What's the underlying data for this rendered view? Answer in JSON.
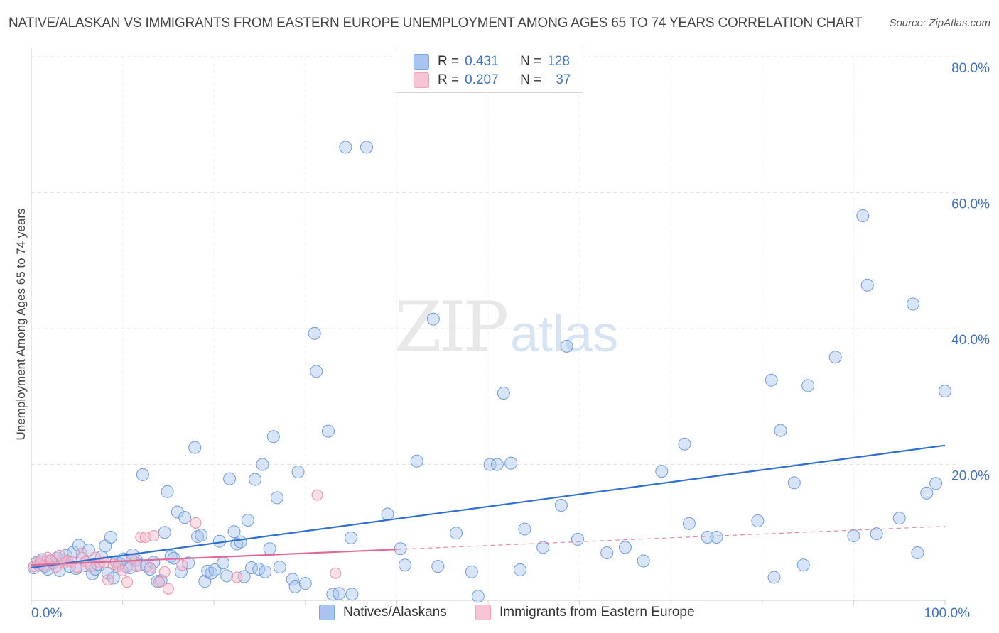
{
  "title": "NATIVE/ALASKAN VS IMMIGRANTS FROM EASTERN EUROPE UNEMPLOYMENT AMONG AGES 65 TO 74 YEARS CORRELATION CHART",
  "source": "Source: ZipAtlas.com",
  "watermark": {
    "zip": "ZIP",
    "atlas": "atlas"
  },
  "legend": {
    "r_label": "R =",
    "n_label": "N =",
    "rows": [
      {
        "r": "0.431",
        "n": "128",
        "color": "#a9c5ef"
      },
      {
        "r": "0.207",
        "n": "37",
        "color": "#f6b7ca"
      }
    ]
  },
  "bottom_legend": [
    {
      "label": "Natives/Alaskans",
      "color": "#a9c5ef"
    },
    {
      "label": "Immigrants from Eastern Europe",
      "color": "#f6b7ca"
    }
  ],
  "colors": {
    "blue": "#3d73c6",
    "blue_line": "#2f6fd0",
    "pink_line": "#e06a95",
    "grid": "#e3e3e3"
  },
  "chart_data": {
    "type": "scatter",
    "title": "NATIVE/ALASKAN VS IMMIGRANTS FROM EASTERN EUROPE UNEMPLOYMENT AMONG AGES 65 TO 74 YEARS CORRELATION CHART",
    "xlabel": "",
    "ylabel": "Unemployment Among Ages 65 to 74 years",
    "xlim": [
      0,
      100
    ],
    "ylim": [
      0,
      80
    ],
    "x_tick_labels": [
      {
        "value": 0,
        "label": "0.0%"
      },
      {
        "value": 100,
        "label": "100.0%"
      }
    ],
    "y_tick_labels": [
      {
        "value": 20,
        "label": "20.0%"
      },
      {
        "value": 40,
        "label": "40.0%"
      },
      {
        "value": 60,
        "label": "60.0%"
      },
      {
        "value": 80,
        "label": "80.0%"
      }
    ],
    "series": [
      {
        "name": "Natives/Alaskans",
        "R": 0.431,
        "N": 128,
        "trend": {
          "x": [
            0,
            100
          ],
          "y": [
            4.8,
            22.8
          ]
        },
        "points": [
          [
            0.3,
            4.8
          ],
          [
            0.6,
            5.6
          ],
          [
            0.9,
            5.2
          ],
          [
            1.2,
            6.0
          ],
          [
            1.5,
            5.0
          ],
          [
            1.8,
            4.6
          ],
          [
            2.1,
            5.8
          ],
          [
            2.4,
            5.5
          ],
          [
            2.8,
            6.2
          ],
          [
            3.1,
            4.4
          ],
          [
            3.5,
            5.9
          ],
          [
            3.8,
            6.6
          ],
          [
            4.2,
            5.0
          ],
          [
            4.6,
            7.1
          ],
          [
            4.9,
            4.7
          ],
          [
            5.2,
            8.1
          ],
          [
            5.6,
            6.2
          ],
          [
            6.0,
            5.1
          ],
          [
            6.3,
            7.4
          ],
          [
            6.7,
            3.9
          ],
          [
            7.0,
            4.6
          ],
          [
            7.3,
            5.3
          ],
          [
            7.7,
            6.4
          ],
          [
            8.1,
            8.0
          ],
          [
            8.4,
            4.0
          ],
          [
            8.7,
            9.3
          ],
          [
            9.0,
            3.3
          ],
          [
            9.3,
            5.7
          ],
          [
            9.7,
            5.4
          ],
          [
            10.1,
            6.1
          ],
          [
            10.4,
            5.0
          ],
          [
            10.8,
            4.8
          ],
          [
            11.1,
            6.7
          ],
          [
            11.5,
            5.9
          ],
          [
            11.9,
            5.2
          ],
          [
            12.2,
            18.5
          ],
          [
            12.6,
            5.1
          ],
          [
            13.0,
            4.6
          ],
          [
            13.4,
            5.6
          ],
          [
            13.8,
            2.8
          ],
          [
            14.2,
            2.9
          ],
          [
            14.6,
            10.0
          ],
          [
            14.9,
            16.0
          ],
          [
            15.3,
            6.5
          ],
          [
            15.6,
            6.2
          ],
          [
            16.0,
            13.0
          ],
          [
            16.4,
            4.2
          ],
          [
            16.8,
            12.2
          ],
          [
            17.2,
            5.5
          ],
          [
            17.9,
            22.5
          ],
          [
            18.2,
            9.4
          ],
          [
            18.6,
            9.6
          ],
          [
            19.0,
            2.8
          ],
          [
            19.3,
            4.3
          ],
          [
            19.7,
            4.0
          ],
          [
            20.1,
            4.5
          ],
          [
            20.6,
            8.7
          ],
          [
            21.0,
            5.5
          ],
          [
            21.4,
            3.6
          ],
          [
            21.7,
            17.9
          ],
          [
            22.2,
            10.1
          ],
          [
            22.5,
            8.3
          ],
          [
            22.9,
            8.6
          ],
          [
            23.3,
            3.5
          ],
          [
            23.7,
            11.8
          ],
          [
            24.1,
            4.8
          ],
          [
            24.5,
            17.8
          ],
          [
            24.9,
            4.6
          ],
          [
            25.3,
            20.0
          ],
          [
            25.6,
            4.2
          ],
          [
            26.1,
            7.6
          ],
          [
            26.5,
            24.1
          ],
          [
            26.9,
            15.1
          ],
          [
            27.2,
            4.9
          ],
          [
            28.6,
            3.1
          ],
          [
            28.9,
            2.0
          ],
          [
            29.2,
            18.9
          ],
          [
            30.0,
            2.5
          ],
          [
            31.0,
            39.3
          ],
          [
            31.2,
            33.7
          ],
          [
            32.5,
            24.9
          ],
          [
            33.0,
            0.9
          ],
          [
            33.7,
            1.0
          ],
          [
            34.4,
            66.7
          ],
          [
            35.0,
            9.2
          ],
          [
            35.1,
            0.9
          ],
          [
            36.7,
            66.7
          ],
          [
            39.0,
            12.7
          ],
          [
            40.4,
            7.6
          ],
          [
            40.9,
            5.2
          ],
          [
            42.2,
            20.5
          ],
          [
            44.0,
            41.4
          ],
          [
            44.5,
            5.0
          ],
          [
            46.5,
            9.9
          ],
          [
            48.2,
            4.2
          ],
          [
            48.9,
            0.6
          ],
          [
            50.2,
            20.0
          ],
          [
            51.0,
            20.0
          ],
          [
            51.7,
            30.5
          ],
          [
            52.5,
            20.2
          ],
          [
            53.5,
            4.5
          ],
          [
            54.0,
            10.5
          ],
          [
            56.0,
            7.8
          ],
          [
            58.0,
            14.0
          ],
          [
            58.6,
            37.4
          ],
          [
            59.8,
            9.0
          ],
          [
            63.0,
            7.0
          ],
          [
            65.0,
            7.8
          ],
          [
            67.0,
            5.8
          ],
          [
            69.0,
            19.0
          ],
          [
            71.5,
            23.0
          ],
          [
            72.0,
            11.3
          ],
          [
            74.0,
            9.3
          ],
          [
            75.0,
            9.3
          ],
          [
            79.5,
            11.7
          ],
          [
            81.0,
            32.4
          ],
          [
            81.3,
            3.4
          ],
          [
            82.0,
            25.0
          ],
          [
            83.5,
            17.3
          ],
          [
            84.5,
            5.2
          ],
          [
            85.0,
            31.6
          ],
          [
            88.0,
            35.8
          ],
          [
            90.0,
            9.5
          ],
          [
            91.0,
            56.6
          ],
          [
            91.5,
            46.4
          ],
          [
            92.5,
            9.8
          ],
          [
            95.0,
            12.1
          ],
          [
            96.5,
            43.6
          ],
          [
            97.0,
            7.0
          ],
          [
            98.0,
            15.8
          ],
          [
            99.0,
            17.2
          ],
          [
            100.0,
            30.8
          ]
        ]
      },
      {
        "name": "Immigrants from Eastern Europe",
        "R": 0.207,
        "N": 37,
        "trend": {
          "x": [
            0,
            40
          ],
          "y": [
            5.2,
            7.5
          ]
        },
        "trend_extension": {
          "x": [
            40,
            100
          ],
          "y": [
            7.5,
            10.9
          ]
        },
        "points": [
          [
            0.3,
            5.0
          ],
          [
            0.7,
            5.6
          ],
          [
            1.0,
            5.8
          ],
          [
            1.4,
            5.1
          ],
          [
            1.8,
            6.3
          ],
          [
            2.2,
            5.9
          ],
          [
            2.7,
            4.9
          ],
          [
            3.1,
            6.6
          ],
          [
            3.6,
            5.5
          ],
          [
            4.0,
            5.8
          ],
          [
            4.4,
            5.7
          ],
          [
            5.0,
            4.9
          ],
          [
            5.5,
            6.9
          ],
          [
            6.0,
            5.7
          ],
          [
            6.5,
            5.0
          ],
          [
            7.0,
            6.3
          ],
          [
            7.5,
            5.5
          ],
          [
            8.0,
            5.6
          ],
          [
            8.4,
            3.0
          ],
          [
            9.0,
            5.3
          ],
          [
            9.5,
            5.0
          ],
          [
            10.0,
            4.4
          ],
          [
            10.5,
            2.7
          ],
          [
            11.0,
            6.1
          ],
          [
            11.5,
            5.0
          ],
          [
            12.0,
            9.3
          ],
          [
            12.5,
            9.3
          ],
          [
            13.0,
            4.8
          ],
          [
            13.4,
            9.5
          ],
          [
            14.0,
            2.7
          ],
          [
            14.6,
            4.2
          ],
          [
            15.0,
            1.7
          ],
          [
            16.5,
            5.2
          ],
          [
            18.0,
            11.4
          ],
          [
            22.5,
            3.4
          ],
          [
            31.3,
            15.5
          ],
          [
            33.3,
            4.0
          ]
        ]
      }
    ]
  }
}
